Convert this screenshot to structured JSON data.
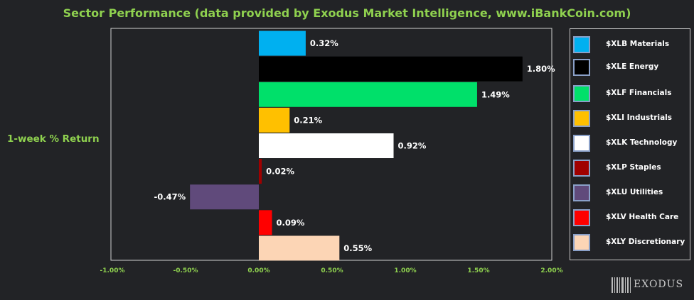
{
  "title": "Sector Performance (data provided by Exodus Market Intelligence, www.iBankCoin.com)",
  "brand": "EXODUS",
  "chart_data": {
    "type": "bar",
    "orientation": "horizontal",
    "ylabel": "1-week % Return",
    "xlim": [
      -1.0,
      2.0
    ],
    "x_ticks": [
      -1.0,
      -0.5,
      0.0,
      0.5,
      1.0,
      1.5,
      2.0
    ],
    "x_tick_labels": [
      "-1.00%",
      "-0.50%",
      "0.00%",
      "0.50%",
      "1.00%",
      "1.50%",
      "2.00%"
    ],
    "legend_placement": "right",
    "grid": false,
    "series": [
      {
        "name": "$XLB Materials",
        "value": 0.32,
        "label": "0.32%",
        "color": "#00b0f0"
      },
      {
        "name": "$XLE Energy",
        "value": 1.8,
        "label": "1.80%",
        "color": "#000000"
      },
      {
        "name": "$XLF Financials",
        "value": 1.49,
        "label": "1.49%",
        "color": "#00e06a"
      },
      {
        "name": "$XLI Industrials",
        "value": 0.21,
        "label": "0.21%",
        "color": "#ffc000"
      },
      {
        "name": "$XLK Technology",
        "value": 0.92,
        "label": "0.92%",
        "color": "#ffffff"
      },
      {
        "name": "$XLP Staples",
        "value": 0.02,
        "label": "0.02%",
        "color": "#a00000"
      },
      {
        "name": "$XLU Utilities",
        "value": -0.47,
        "label": "-0.47%",
        "color": "#604a7b"
      },
      {
        "name": "$XLV Health Care",
        "value": 0.09,
        "label": "0.09%",
        "color": "#ff0000"
      },
      {
        "name": "$XLY Discretionary",
        "value": 0.55,
        "label": "0.55%",
        "color": "#fcd5b5"
      }
    ]
  }
}
